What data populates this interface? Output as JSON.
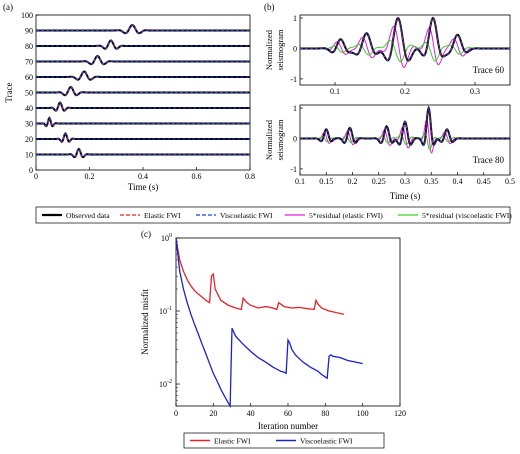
{
  "chart_data": [
    {
      "panel": "(a)",
      "type": "line",
      "xlabel": "Time (s)",
      "ylabel": "Trace",
      "xlim": [
        0,
        0.8
      ],
      "ylim": [
        0,
        100
      ],
      "xticks": [
        0,
        0.2,
        0.4,
        0.6,
        0.8
      ],
      "yticks": [
        0,
        10,
        20,
        30,
        40,
        50,
        60,
        70,
        80,
        90,
        100
      ],
      "traces": [
        {
          "trace": 10,
          "onset": 0.12,
          "center": 0.16,
          "end": 0.2
        },
        {
          "trace": 20,
          "onset": 0.08,
          "center": 0.11,
          "end": 0.15
        },
        {
          "trace": 30,
          "onset": 0.03,
          "center": 0.05,
          "end": 0.09
        },
        {
          "trace": 40,
          "onset": 0.05,
          "center": 0.09,
          "end": 0.13
        },
        {
          "trace": 50,
          "onset": 0.08,
          "center": 0.13,
          "end": 0.19
        },
        {
          "trace": 60,
          "onset": 0.12,
          "center": 0.18,
          "end": 0.24
        },
        {
          "trace": 70,
          "onset": 0.17,
          "center": 0.23,
          "end": 0.29
        },
        {
          "trace": 80,
          "onset": 0.22,
          "center": 0.28,
          "end": 0.33
        },
        {
          "trace": 90,
          "onset": 0.29,
          "center": 0.36,
          "end": 0.42
        }
      ],
      "series": [
        {
          "name": "Observed data",
          "color": "#000000"
        },
        {
          "name": "Elastic FWI",
          "color": "#e3242b"
        },
        {
          "name": "Viscoelastic FWI",
          "color": "#1f3fd9"
        }
      ]
    },
    {
      "panel": "(b)",
      "type": "line",
      "xlabel": "Time (s)",
      "ylabel": "Normalized seismogram",
      "subplots": [
        {
          "annotation": "Trace 60",
          "xlim": [
            0.05,
            0.35
          ],
          "ylim": [
            -1.2,
            1.1
          ],
          "xticks": [
            0.1,
            0.2,
            0.3
          ],
          "yticks": [
            -1,
            0,
            1
          ],
          "wavelets": [
            {
              "t": 0.108,
              "a": 0.3,
              "f": 35,
              "w": 0.014
            },
            {
              "t": 0.145,
              "a": 0.5,
              "f": 30,
              "w": 0.016
            },
            {
              "t": 0.19,
              "a": 1.0,
              "f": 28,
              "w": 0.017
            },
            {
              "t": 0.24,
              "a": 1.0,
              "f": 28,
              "w": 0.013
            },
            {
              "t": 0.275,
              "a": 0.45,
              "f": 30,
              "w": 0.013
            }
          ],
          "residual_scale": {
            "elastic": 0.85,
            "viscoelastic": 0.45
          }
        },
        {
          "annotation": "Trace 80",
          "xlim": [
            0.1,
            0.5
          ],
          "ylim": [
            -1.2,
            1.1
          ],
          "xticks": [
            0.1,
            0.15,
            0.2,
            0.25,
            0.3,
            0.35,
            0.4,
            0.45,
            0.5
          ],
          "yticks": [
            -1,
            0,
            1
          ],
          "wavelets": [
            {
              "t": 0.15,
              "a": 0.3,
              "f": 40,
              "w": 0.01
            },
            {
              "t": 0.195,
              "a": 0.35,
              "f": 40,
              "w": 0.012
            },
            {
              "t": 0.265,
              "a": 0.4,
              "f": 38,
              "w": 0.012
            },
            {
              "t": 0.3,
              "a": 0.55,
              "f": 38,
              "w": 0.012
            },
            {
              "t": 0.345,
              "a": 1.0,
              "f": 38,
              "w": 0.009
            },
            {
              "t": 0.38,
              "a": 0.3,
              "f": 38,
              "w": 0.012
            }
          ],
          "residual_scale": {
            "elastic": 0.8,
            "viscoelastic": 0.4
          }
        }
      ]
    },
    {
      "panel": "(c)",
      "type": "line",
      "xlabel": "Iteration number",
      "ylabel": "Normalized misfit",
      "xlim": [
        0,
        120
      ],
      "ylim": [
        0.005,
        1
      ],
      "yscale": "log",
      "xticks": [
        0,
        20,
        40,
        60,
        80,
        100,
        120
      ],
      "yticks": [
        "10^-2",
        "10^-1",
        "10^0"
      ],
      "series": [
        {
          "name": "Elastic FWI",
          "color": "#e3242b",
          "x": [
            0,
            1,
            2,
            4,
            6,
            8,
            10,
            12,
            14,
            16,
            17,
            18,
            19,
            20,
            21,
            24,
            28,
            32,
            35,
            36,
            37,
            38,
            40,
            44,
            48,
            52,
            54,
            55,
            56,
            58,
            62,
            66,
            70,
            74,
            75,
            76,
            78,
            82,
            86,
            90
          ],
          "y": [
            1.0,
            0.7,
            0.5,
            0.35,
            0.27,
            0.22,
            0.19,
            0.17,
            0.155,
            0.14,
            0.135,
            0.13,
            0.3,
            0.32,
            0.2,
            0.14,
            0.12,
            0.11,
            0.105,
            0.15,
            0.14,
            0.13,
            0.12,
            0.11,
            0.115,
            0.11,
            0.105,
            0.13,
            0.125,
            0.115,
            0.11,
            0.112,
            0.108,
            0.105,
            0.14,
            0.125,
            0.11,
            0.1,
            0.095,
            0.09
          ]
        },
        {
          "name": "Viscoelastic FWI",
          "color": "#1a22c8",
          "x": [
            0,
            1,
            2,
            4,
            6,
            8,
            10,
            12,
            14,
            16,
            18,
            20,
            22,
            24,
            26,
            28,
            29,
            30,
            32,
            36,
            40,
            44,
            48,
            52,
            56,
            58,
            59,
            60,
            61,
            62,
            64,
            68,
            72,
            76,
            78,
            80,
            81,
            82,
            83,
            84,
            88,
            92,
            96,
            100
          ],
          "y": [
            1.0,
            0.6,
            0.35,
            0.2,
            0.13,
            0.09,
            0.065,
            0.048,
            0.035,
            0.026,
            0.019,
            0.014,
            0.011,
            0.0085,
            0.0068,
            0.0055,
            0.005,
            0.058,
            0.045,
            0.035,
            0.028,
            0.023,
            0.02,
            0.017,
            0.015,
            0.0145,
            0.014,
            0.04,
            0.036,
            0.03,
            0.025,
            0.02,
            0.017,
            0.015,
            0.0135,
            0.0125,
            0.012,
            0.024,
            0.025,
            0.024,
            0.023,
            0.021,
            0.02,
            0.019
          ]
        }
      ]
    }
  ],
  "legend_top": [
    "Observed data",
    "Elastic FWI",
    "Viscoelastic FWI",
    "5*residual (elastic FWI)",
    "5*residual (viscoelastic FWI)"
  ],
  "legend_top_colors": [
    "#000000",
    "#e3242b",
    "#1f3fd9",
    "#e31ee3",
    "#3ccf2b"
  ],
  "legend_bottom": [
    "Elastic FWI",
    "Viscoelastic FWI"
  ],
  "legend_bottom_colors": [
    "#e3242b",
    "#1a22c8"
  ]
}
